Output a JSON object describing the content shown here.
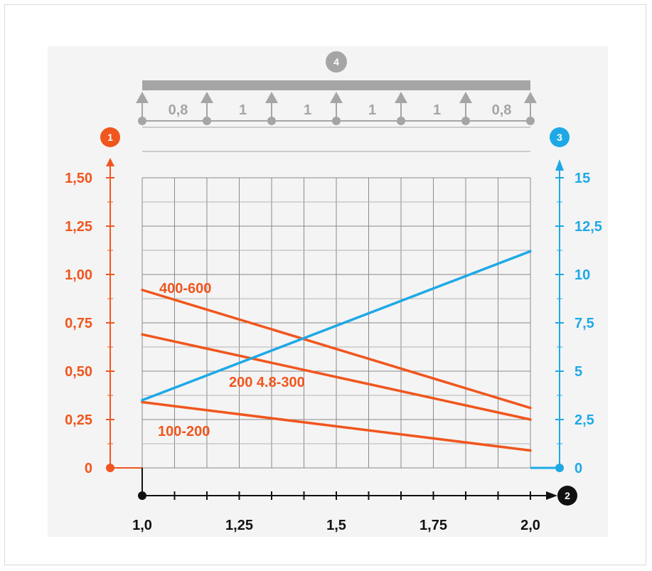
{
  "colors": {
    "left_axis": "#f0561e",
    "right_axis": "#1ea9e6",
    "bottom_axis": "#111111",
    "beam": "#a5a5a5",
    "grid": "#8a8a8a",
    "background": "#f4f4f4"
  },
  "markers": {
    "left": "1",
    "bottom": "2",
    "right": "3",
    "top": "4"
  },
  "beam": {
    "span_labels": [
      "0,8",
      "1",
      "1",
      "1",
      "1",
      "0,8"
    ]
  },
  "chart_data": {
    "type": "line",
    "x_ticks": [
      "1,0",
      "1,25",
      "1,5",
      "1,75",
      "2,0"
    ],
    "x_tick_values": [
      1.0,
      1.25,
      1.5,
      1.75,
      2.0
    ],
    "xlim": [
      1.0,
      2.0
    ],
    "x_grid_step": 0.0833,
    "y_left_ticks": [
      "0",
      "0,25",
      "0,50",
      "0,75",
      "1,00",
      "1,25",
      "1,50"
    ],
    "y_left_tick_values": [
      0,
      0.25,
      0.5,
      0.75,
      1.0,
      1.25,
      1.5
    ],
    "ylim_left": [
      0,
      1.5
    ],
    "y_right_ticks": [
      "0",
      "2,5",
      "5",
      "7,5",
      "10",
      "12,5",
      "15"
    ],
    "y_right_tick_values": [
      0,
      2.5,
      5,
      7.5,
      10,
      12.5,
      15
    ],
    "ylim_right": [
      0,
      15
    ],
    "grid": true,
    "series": [
      {
        "name": "400-600",
        "axis": "left",
        "color": "#f0561e",
        "x": [
          1.0,
          2.0
        ],
        "y": [
          0.92,
          0.31
        ]
      },
      {
        "name": "200 4.8-300",
        "axis": "left",
        "color": "#f0561e",
        "x": [
          1.0,
          2.0
        ],
        "y": [
          0.69,
          0.25
        ]
      },
      {
        "name": "100-200",
        "axis": "left",
        "color": "#f0561e",
        "x": [
          1.0,
          2.0
        ],
        "y": [
          0.34,
          0.09
        ]
      },
      {
        "name": "",
        "axis": "right",
        "color": "#1ea9e6",
        "x": [
          1.0,
          2.0
        ],
        "y": [
          3.5,
          11.2
        ]
      }
    ]
  }
}
